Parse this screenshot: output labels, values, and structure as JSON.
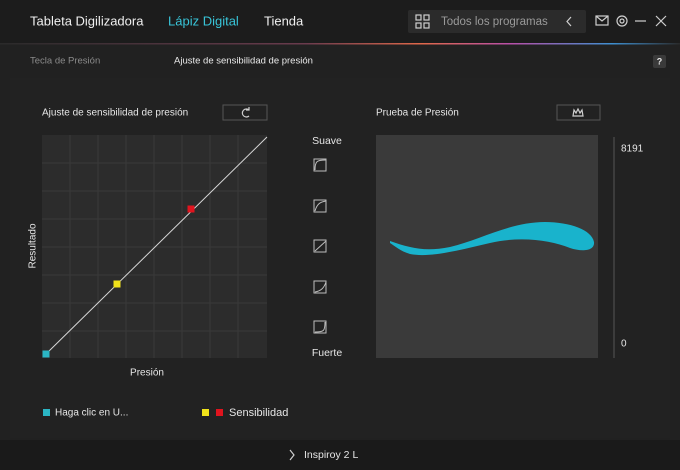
{
  "header": {
    "tabs": [
      "Tableta Digilizadora",
      "Lápiz Digital",
      "Tienda"
    ],
    "search_placeholder": "Todos los programas"
  },
  "subnav": {
    "items": [
      "Tecla de Presión",
      "Ajuste de sensibilidad de presión"
    ],
    "help": "?"
  },
  "sensitivity_panel": {
    "title": "Ajuste de sensibilidad de presión",
    "y_label": "Resultado",
    "x_label": "Presión"
  },
  "presets": {
    "top_label": "Suave",
    "bottom_label": "Fuerte"
  },
  "test_panel": {
    "title": "Prueba de Presión",
    "scale_max": 8191,
    "scale_min": 0
  },
  "legend": [
    "Haga clic en U...",
    "Sensibilidad"
  ],
  "footer": {
    "device": "Inspiroy 2 L"
  }
}
